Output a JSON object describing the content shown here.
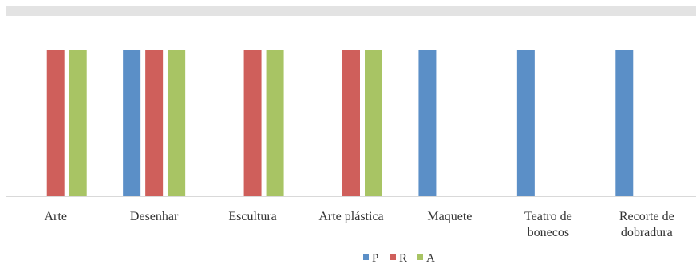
{
  "chart_data": {
    "type": "bar",
    "title": "",
    "xlabel": "",
    "ylabel": "",
    "ylim": [
      0,
      1
    ],
    "grid": false,
    "legend_position": "bottom",
    "categories": [
      [
        "Arte"
      ],
      [
        "Desenhar"
      ],
      [
        "Escultura"
      ],
      [
        "Arte plástica"
      ],
      [
        "Maquete"
      ],
      [
        "Teatro de",
        "bonecos"
      ],
      [
        "Recorte de",
        "dobradura"
      ]
    ],
    "series": [
      {
        "name": "P",
        "color": "#5b8fc7",
        "values": [
          0,
          1,
          0,
          0,
          1,
          1,
          1
        ]
      },
      {
        "name": "R",
        "color": "#cf5f5b",
        "values": [
          1,
          1,
          1,
          1,
          0,
          0,
          0
        ]
      },
      {
        "name": "A",
        "color": "#a8c464",
        "values": [
          1,
          1,
          1,
          1,
          0,
          0,
          0
        ]
      }
    ]
  }
}
